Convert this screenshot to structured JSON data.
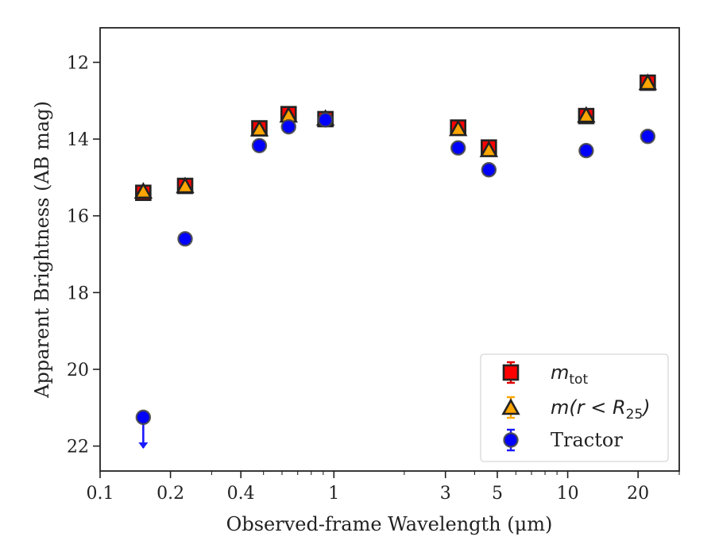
{
  "chart_data": {
    "type": "scatter",
    "xscale": "log",
    "xlim": [
      0.1,
      30
    ],
    "ylim": [
      22.65,
      11.1
    ],
    "y_inverted": true,
    "xlabel": "Observed-frame Wavelength (μm)",
    "ylabel": "Apparent Brightness (AB mag)",
    "x_ticks": [
      {
        "value": 0.1,
        "label": "0.1"
      },
      {
        "value": 0.2,
        "label": "0.2"
      },
      {
        "value": 0.4,
        "label": "0.4"
      },
      {
        "value": 1,
        "label": "1"
      },
      {
        "value": 3,
        "label": "3"
      },
      {
        "value": 5,
        "label": "5"
      },
      {
        "value": 10,
        "label": "10"
      },
      {
        "value": 20,
        "label": "20"
      }
    ],
    "x_minor_ticks": [
      0.3,
      0.5,
      0.6,
      0.7,
      0.8,
      0.9,
      2,
      4,
      6,
      7,
      8,
      9,
      30
    ],
    "y_ticks": [
      {
        "value": 12,
        "label": "12"
      },
      {
        "value": 14,
        "label": "14"
      },
      {
        "value": 16,
        "label": "16"
      },
      {
        "value": 18,
        "label": "18"
      },
      {
        "value": 20,
        "label": "20"
      },
      {
        "value": 22,
        "label": "22"
      }
    ],
    "grid": false,
    "legend_position": "bottom-right",
    "series": [
      {
        "name": "m_tot",
        "marker": "square",
        "face_color": "#ff0000",
        "edge_color": "#222222",
        "x": [
          0.153,
          0.231,
          0.48,
          0.64,
          0.92,
          3.4,
          4.6,
          12.0,
          22.0
        ],
        "y": [
          15.4,
          15.22,
          13.72,
          13.35,
          13.48,
          13.7,
          14.22,
          13.4,
          12.53
        ]
      },
      {
        "name": "m(r < R25)",
        "marker": "triangle",
        "face_color": "#ffa500",
        "edge_color": "#222222",
        "x": [
          0.153,
          0.231,
          0.48,
          0.64,
          0.92,
          3.4,
          4.6,
          12.0,
          22.0
        ],
        "y": [
          15.38,
          15.24,
          13.76,
          13.4,
          13.48,
          13.75,
          14.3,
          13.4,
          12.55
        ]
      },
      {
        "name": "Tractor",
        "marker": "circle",
        "face_color": "#0000ff",
        "edge_color": "#444444",
        "x": [
          0.153,
          0.231,
          0.48,
          0.64,
          0.92,
          3.4,
          4.6,
          12.0,
          22.0
        ],
        "y": [
          21.25,
          16.6,
          14.17,
          13.68,
          13.5,
          14.23,
          14.8,
          14.3,
          13.93
        ],
        "upper_limit": [
          true,
          false,
          false,
          false,
          false,
          false,
          false,
          false,
          false
        ]
      }
    ],
    "legend_entries": [
      {
        "main": "m",
        "sub": "tot",
        "suffix": ""
      },
      {
        "main": "m(r < R",
        "sub": "25",
        "suffix": ")"
      },
      {
        "main": "Tractor",
        "sub": "",
        "suffix": ""
      }
    ]
  }
}
